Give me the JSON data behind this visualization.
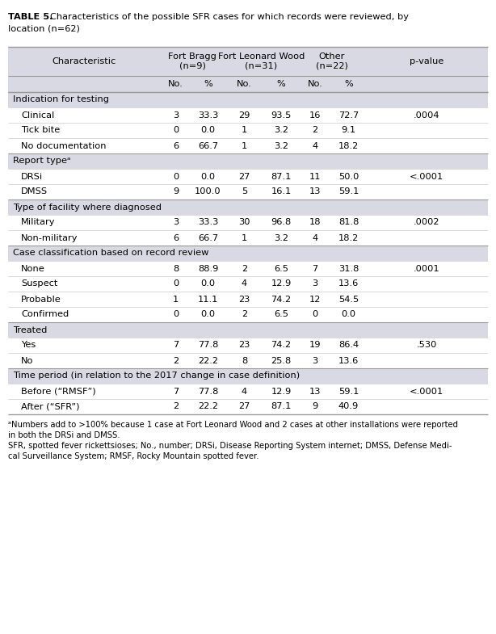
{
  "title_bold": "TABLE 5.",
  "title_regular": " Characteristics of the possible SFR cases for which records were reviewed, by\nlocation (n=62)",
  "header_row1_cols": [
    "Characteristic",
    "Fort Bragg\n(n=9)",
    "Fort Leonard Wood\n(n=31)",
    "Other\n(n=22)",
    "p-value"
  ],
  "header_row2_cols": [
    "No.",
    "%",
    "No.",
    "%",
    "No.",
    "%"
  ],
  "sections": [
    {
      "label": "Indication for testing",
      "rows": [
        [
          "Clinical",
          "3",
          "33.3",
          "29",
          "93.5",
          "16",
          "72.7",
          ".0004"
        ],
        [
          "Tick bite",
          "0",
          "0.0",
          "1",
          "3.2",
          "2",
          "9.1",
          ""
        ],
        [
          "No documentation",
          "6",
          "66.7",
          "1",
          "3.2",
          "4",
          "18.2",
          ""
        ]
      ]
    },
    {
      "label": "Report typeᵃ",
      "rows": [
        [
          "DRSi",
          "0",
          "0.0",
          "27",
          "87.1",
          "11",
          "50.0",
          "<.0001"
        ],
        [
          "DMSS",
          "9",
          "100.0",
          "5",
          "16.1",
          "13",
          "59.1",
          ""
        ]
      ]
    },
    {
      "label": "Type of facility where diagnosed",
      "rows": [
        [
          "Military",
          "3",
          "33.3",
          "30",
          "96.8",
          "18",
          "81.8",
          ".0002"
        ],
        [
          "Non-military",
          "6",
          "66.7",
          "1",
          "3.2",
          "4",
          "18.2",
          ""
        ]
      ]
    },
    {
      "label": "Case classification based on record review",
      "rows": [
        [
          "None",
          "8",
          "88.9",
          "2",
          "6.5",
          "7",
          "31.8",
          ".0001"
        ],
        [
          "Suspect",
          "0",
          "0.0",
          "4",
          "12.9",
          "3",
          "13.6",
          ""
        ],
        [
          "Probable",
          "1",
          "11.1",
          "23",
          "74.2",
          "12",
          "54.5",
          ""
        ],
        [
          "Confirmed",
          "0",
          "0.0",
          "2",
          "6.5",
          "0",
          "0.0",
          ""
        ]
      ]
    },
    {
      "label": "Treated",
      "rows": [
        [
          "Yes",
          "7",
          "77.8",
          "23",
          "74.2",
          "19",
          "86.4",
          ".530"
        ],
        [
          "No",
          "2",
          "22.2",
          "8",
          "25.8",
          "3",
          "13.6",
          ""
        ]
      ]
    },
    {
      "label": "Time period (in relation to the 2017 change in case definition)",
      "rows": [
        [
          "Before (“RMSF”)",
          "7",
          "77.8",
          "4",
          "12.9",
          "13",
          "59.1",
          "<.0001"
        ],
        [
          "After (“SFR”)",
          "2",
          "22.2",
          "27",
          "87.1",
          "9",
          "40.9",
          ""
        ]
      ]
    }
  ],
  "footnote1": "ᵃNumbers add to >100% because 1 case at Fort Leonard Wood and 2 cases at other installations were reported\nin both the DRSi and DMSS.",
  "footnote2": "SFR, spotted fever rickettsioses; No., number; DRSi, Disease Reporting System internet; DMSS, Defense Medi-\ncal Surveillance System; RMSF, Rocky Mountain spotted fever.",
  "header_bg": "#d9d9e3",
  "section_bg": "#d9d9e3",
  "row_bg": "#ffffff",
  "text_color": "#000000",
  "line_color": "#999999",
  "title_fontsize": 8.2,
  "header_fontsize": 8.2,
  "data_fontsize": 8.2,
  "footnote_fontsize": 7.2
}
